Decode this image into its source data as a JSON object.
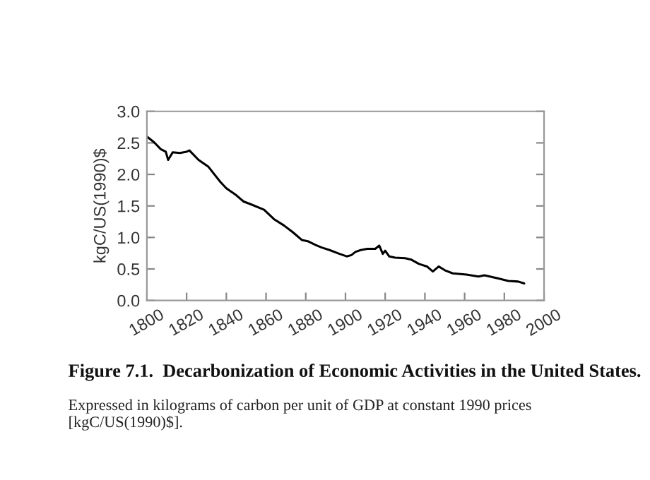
{
  "chart_data": {
    "type": "line",
    "title": "Figure 7.1.  Decarbonization of Economic Activities in the United States.",
    "subtitle": "Expressed in kilograms of carbon per unit of GDP at constant 1990 prices [kgC/US(1990)$].",
    "ylabel": "kgC/US(1990)$",
    "series": [
      {
        "color": "#000000",
        "x": [
          1800,
          1803.6,
          1807,
          1809.5,
          1810.7,
          1813,
          1816.6,
          1820,
          1821.4,
          1826,
          1831,
          1837,
          1840,
          1845,
          1848.7,
          1852,
          1859,
          1864,
          1869,
          1873.6,
          1878,
          1881,
          1885,
          1888,
          1892,
          1897,
          1900.6,
          1903,
          1905,
          1907.7,
          1911,
          1915,
          1917,
          1918.8,
          1920,
          1922,
          1925,
          1930,
          1933,
          1937,
          1941,
          1944,
          1947,
          1950,
          1954,
          1961,
          1967,
          1970,
          1977,
          1982,
          1987,
          1990
        ],
        "values": [
          2.6,
          2.51,
          2.4,
          2.36,
          2.23,
          2.35,
          2.34,
          2.36,
          2.38,
          2.23,
          2.12,
          1.88,
          1.78,
          1.67,
          1.57,
          1.53,
          1.44,
          1.29,
          1.19,
          1.08,
          0.96,
          0.94,
          0.88,
          0.84,
          0.8,
          0.74,
          0.7,
          0.72,
          0.77,
          0.8,
          0.82,
          0.82,
          0.87,
          0.74,
          0.79,
          0.7,
          0.68,
          0.67,
          0.65,
          0.58,
          0.54,
          0.46,
          0.54,
          0.48,
          0.43,
          0.41,
          0.38,
          0.4,
          0.35,
          0.31,
          0.3,
          0.27
        ]
      }
    ],
    "xlim": [
      1800,
      2000
    ],
    "xticks": [
      1800,
      1820,
      1840,
      1860,
      1880,
      1900,
      1920,
      1940,
      1960,
      1980,
      2000
    ],
    "ylim": [
      0,
      3
    ],
    "yticks": [
      {
        "value": 0,
        "label": "0.0"
      },
      {
        "value": 0.5,
        "label": "0.5"
      },
      {
        "value": 1,
        "label": "1.0"
      },
      {
        "value": 1.5,
        "label": "1.5"
      },
      {
        "value": 2,
        "label": "2.0"
      },
      {
        "value": 2.5,
        "label": "2.5"
      },
      {
        "value": 3,
        "label": "3.0"
      }
    ],
    "grid": false,
    "legend": false,
    "marker": "none",
    "line_style": "solid"
  }
}
